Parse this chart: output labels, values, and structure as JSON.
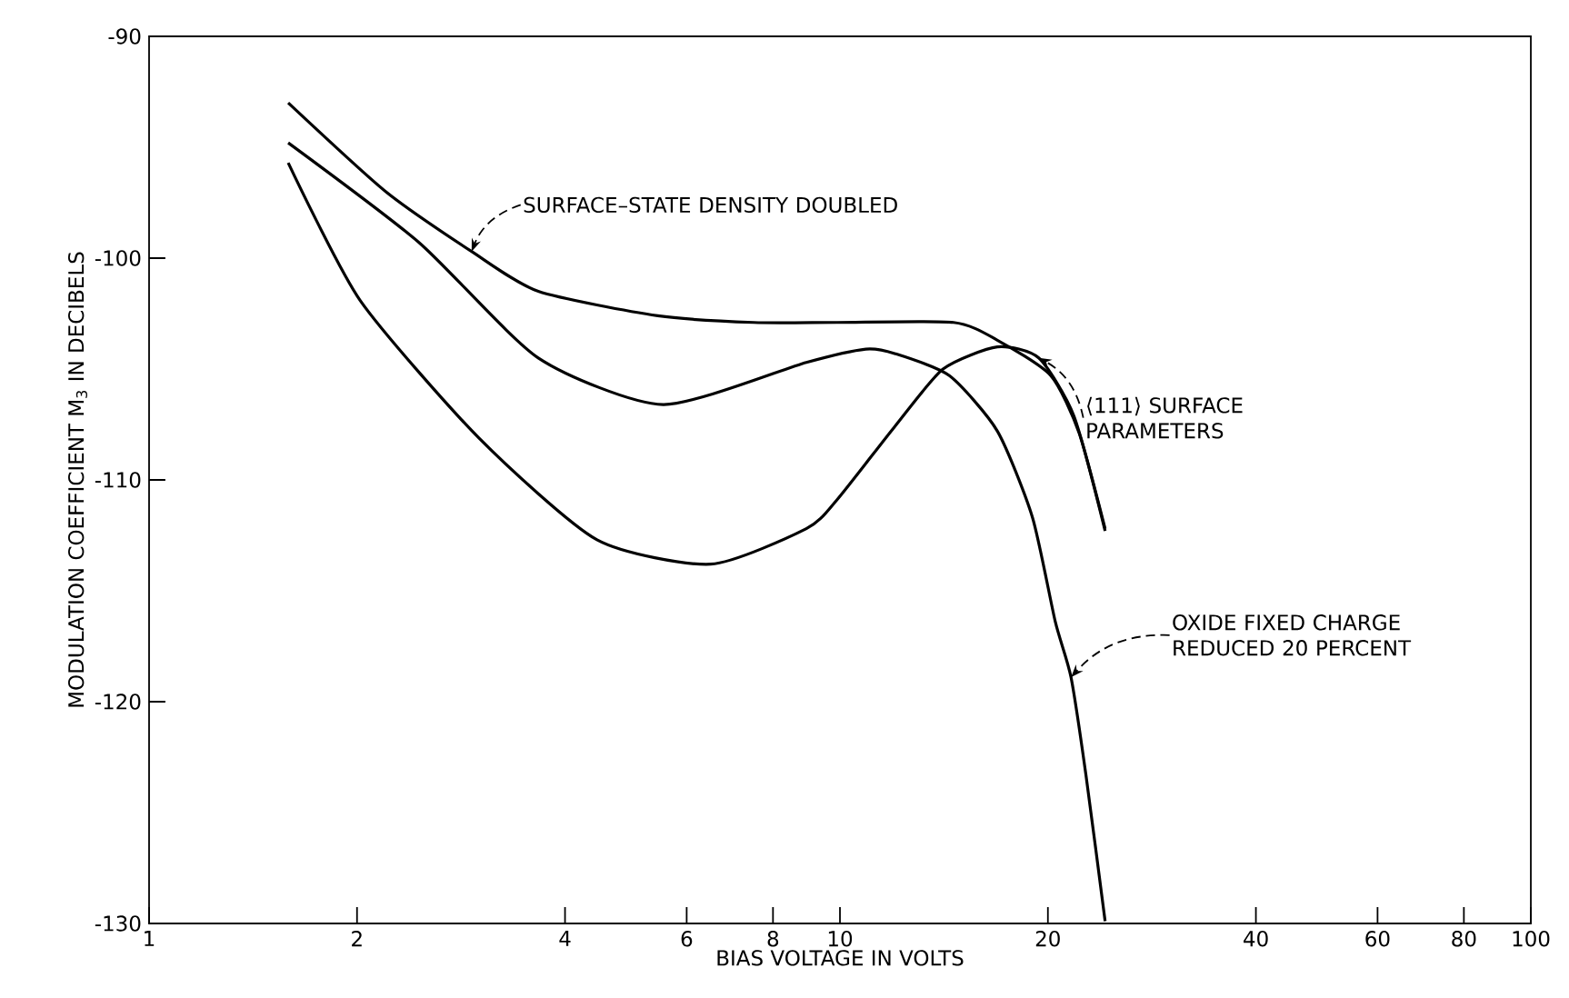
{
  "chart_data": {
    "type": "line",
    "xlabel": "BIAS VOLTAGE IN VOLTS",
    "ylabel": "MODULATION COEFFICIENT M$_{3}$ IN DECIBELS",
    "log": "x",
    "grid": false,
    "marker": "none",
    "line_style": "solid",
    "xlim": [
      1,
      100
    ],
    "ylim": [
      -130,
      -90
    ],
    "xticks": [
      1,
      2,
      4,
      6,
      8,
      10,
      20,
      40,
      60,
      80,
      100
    ],
    "yticks": [
      -130,
      -120,
      -110,
      -100,
      -90
    ],
    "series": [
      {
        "name": "SURFACE–STATE DENSITY DOUBLED",
        "color": "#000000",
        "x": [
          1.59,
          2.2,
          2.93,
          3.66,
          5.45,
          7.5,
          9.9,
          14.6,
          16.9,
          20.2,
          22.2,
          24.2
        ],
        "values": [
          -93.0,
          -97.0,
          -99.7,
          -101.5,
          -102.6,
          -102.9,
          -102.9,
          -102.9,
          -103.7,
          -105.3,
          -107.9,
          -112.3
        ]
      },
      {
        "name": "OXIDE FIXED CHARGE REDUCED 20 PERCENT",
        "color": "#000000",
        "x": [
          1.59,
          2.46,
          3.66,
          5.55,
          8.94,
          10.9,
          12.0,
          14.4,
          16.9,
          19.0,
          20.5,
          21.6,
          22.7,
          24.2
        ],
        "values": [
          -94.8,
          -99.3,
          -104.5,
          -106.6,
          -104.7,
          -104.1,
          -104.3,
          -105.3,
          -107.8,
          -111.7,
          -116.4,
          -118.9,
          -123.3,
          -129.9
        ]
      },
      {
        "name": "⟨111⟩ SURFACE PARAMETERS",
        "color": "#000000",
        "x": [
          1.59,
          2.02,
          3.0,
          4.45,
          6.5,
          8.94,
          9.9,
          12.0,
          14.1,
          16.9,
          19.4,
          21.8,
          24.2
        ],
        "values": [
          -95.7,
          -101.9,
          -108.1,
          -112.7,
          -113.8,
          -112.2,
          -110.9,
          -107.6,
          -105.0,
          -104.0,
          -104.5,
          -107.1,
          -112.2
        ]
      }
    ]
  }
}
